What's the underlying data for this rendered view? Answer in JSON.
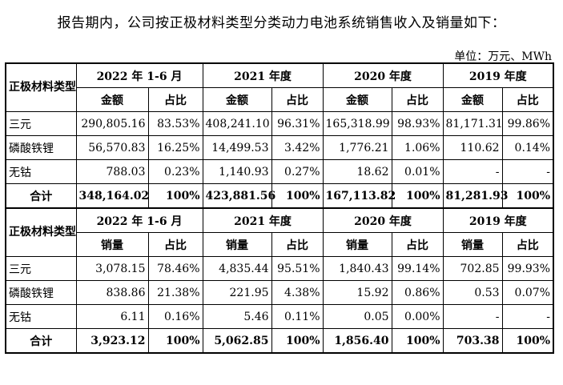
{
  "intro": "报告期内，公司按正极材料类型分类动力电池系统销售收入及销量如下：",
  "unit": "单位：万元、MWh",
  "headers": {
    "category": "正极材料类型",
    "periods": [
      "2022 年 1-6 月",
      "2021 年度",
      "2020 年度",
      "2019 年度"
    ],
    "amount": "金额",
    "volume": "销量",
    "share": "占比"
  },
  "revenue": [
    {
      "category": "三元",
      "cells": [
        "290,805.16",
        "83.53%",
        "408,241.10",
        "96.31%",
        "165,318.99",
        "98.93%",
        "81,171.31",
        "99.86%"
      ]
    },
    {
      "category": "磷酸铁锂",
      "cells": [
        "56,570.83",
        "16.25%",
        "14,499.53",
        "3.42%",
        "1,776.21",
        "1.06%",
        "110.62",
        "0.14%"
      ]
    },
    {
      "category": "无钴",
      "cells": [
        "788.03",
        "0.23%",
        "1,140.93",
        "0.27%",
        "18.62",
        "0.01%",
        "-",
        "-"
      ]
    },
    {
      "category": "合计",
      "cells": [
        "348,164.02",
        "100%",
        "423,881.56",
        "100%",
        "167,113.82",
        "100%",
        "81,281.93",
        "100%"
      ]
    }
  ],
  "volume": [
    {
      "category": "三元",
      "cells": [
        "3,078.15",
        "78.46%",
        "4,835.44",
        "95.51%",
        "1,840.43",
        "99.14%",
        "702.85",
        "99.93%"
      ]
    },
    {
      "category": "磷酸铁锂",
      "cells": [
        "838.86",
        "21.38%",
        "221.95",
        "4.38%",
        "15.92",
        "0.86%",
        "0.53",
        "0.07%"
      ]
    },
    {
      "category": "无钴",
      "cells": [
        "6.11",
        "0.16%",
        "5.46",
        "0.11%",
        "0.05",
        "0.00%",
        "-",
        "-"
      ]
    },
    {
      "category": "合计",
      "cells": [
        "3,923.12",
        "100%",
        "5,062.85",
        "100%",
        "1,856.40",
        "100%",
        "703.38",
        "100%"
      ]
    }
  ]
}
